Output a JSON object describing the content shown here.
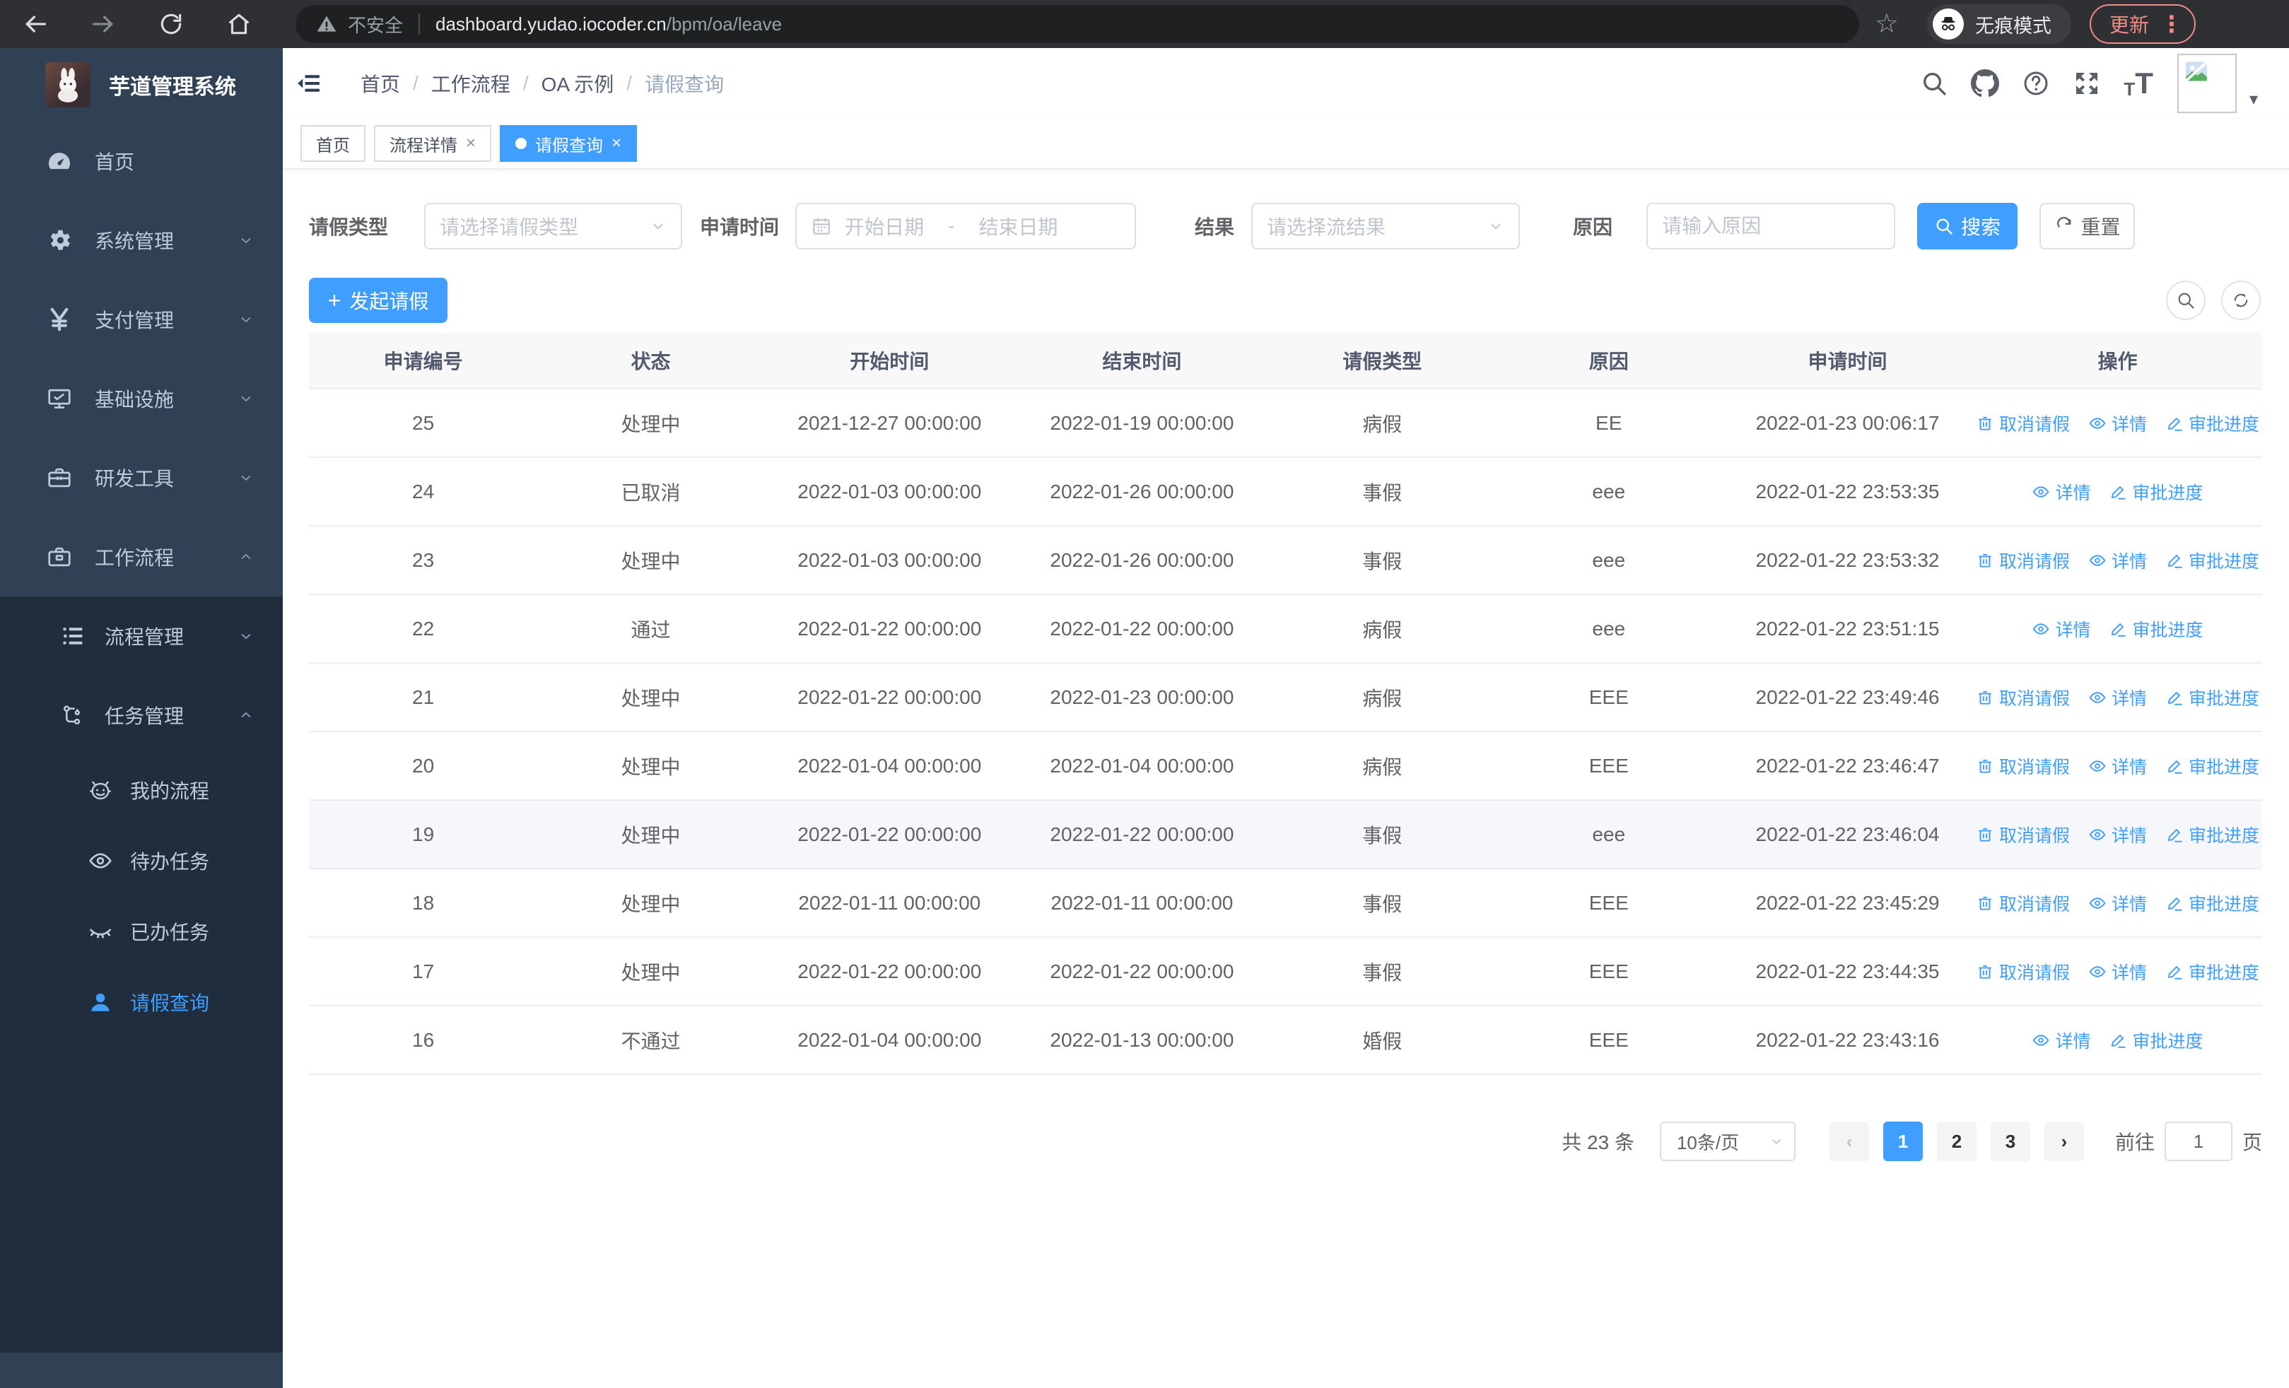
{
  "browser": {
    "security_label": "不安全",
    "url_host": "dashboard.yudao.iocoder.cn",
    "url_path": "/bpm/oa/leave",
    "incognito_label": "无痕模式",
    "update_label": "更新"
  },
  "sidebar": {
    "title": "芋道管理系统",
    "items": [
      {
        "label": "首页",
        "icon": "dashboard-icon",
        "arrow": ""
      },
      {
        "label": "系统管理",
        "icon": "gear-icon",
        "arrow": "down"
      },
      {
        "label": "支付管理",
        "icon": "yen-icon",
        "arrow": "down"
      },
      {
        "label": "基础设施",
        "icon": "monitor-icon",
        "arrow": "down"
      },
      {
        "label": "研发工具",
        "icon": "toolbox-icon",
        "arrow": "down"
      },
      {
        "label": "工作流程",
        "icon": "briefcase-icon",
        "arrow": "up"
      }
    ],
    "sub_items": [
      {
        "label": "流程管理",
        "icon": "tree-icon",
        "arrow": "down"
      },
      {
        "label": "任务管理",
        "icon": "flow-icon",
        "arrow": "up"
      }
    ],
    "leaf_items": [
      {
        "label": "我的流程",
        "icon": "robot-icon",
        "active": false
      },
      {
        "label": "待办任务",
        "icon": "eye-open-icon",
        "active": false
      },
      {
        "label": "已办任务",
        "icon": "eye-closed-icon",
        "active": false
      },
      {
        "label": "请假查询",
        "icon": "user-icon",
        "active": true
      }
    ]
  },
  "header": {
    "breadcrumb": [
      "首页",
      "工作流程",
      "OA 示例",
      "请假查询"
    ]
  },
  "tabs": [
    {
      "label": "首页",
      "active": false,
      "closable": false
    },
    {
      "label": "流程详情",
      "active": false,
      "closable": true
    },
    {
      "label": "请假查询",
      "active": true,
      "closable": true
    }
  ],
  "filters": {
    "type_label": "请假类型",
    "type_placeholder": "请选择请假类型",
    "time_label": "申请时间",
    "start_placeholder": "开始日期",
    "range_separator": "-",
    "end_placeholder": "结束日期",
    "result_label": "结果",
    "result_placeholder": "请选择流结果",
    "reason_label": "原因",
    "reason_placeholder": "请输入原因",
    "search_label": "搜索",
    "reset_label": "重置"
  },
  "toolbar": {
    "create_label": "发起请假"
  },
  "table": {
    "columns": [
      "申请编号",
      "状态",
      "开始时间",
      "结束时间",
      "请假类型",
      "原因",
      "申请时间",
      "操作"
    ],
    "action_labels": {
      "cancel": "取消请假",
      "detail": "详情",
      "progress": "审批进度"
    },
    "rows": [
      {
        "id": "25",
        "status": "处理中",
        "start": "2021-12-27 00:00:00",
        "end": "2022-01-19 00:00:00",
        "type": "病假",
        "reason": "EE",
        "apply_time": "2022-01-23 00:06:17",
        "actions": [
          "cancel",
          "detail",
          "progress"
        ],
        "highlight": false
      },
      {
        "id": "24",
        "status": "已取消",
        "start": "2022-01-03 00:00:00",
        "end": "2022-01-26 00:00:00",
        "type": "事假",
        "reason": "eee",
        "apply_time": "2022-01-22 23:53:35",
        "actions": [
          "detail",
          "progress"
        ],
        "highlight": false
      },
      {
        "id": "23",
        "status": "处理中",
        "start": "2022-01-03 00:00:00",
        "end": "2022-01-26 00:00:00",
        "type": "事假",
        "reason": "eee",
        "apply_time": "2022-01-22 23:53:32",
        "actions": [
          "cancel",
          "detail",
          "progress"
        ],
        "highlight": false
      },
      {
        "id": "22",
        "status": "通过",
        "start": "2022-01-22 00:00:00",
        "end": "2022-01-22 00:00:00",
        "type": "病假",
        "reason": "eee",
        "apply_time": "2022-01-22 23:51:15",
        "actions": [
          "detail",
          "progress"
        ],
        "highlight": false
      },
      {
        "id": "21",
        "status": "处理中",
        "start": "2022-01-22 00:00:00",
        "end": "2022-01-23 00:00:00",
        "type": "病假",
        "reason": "EEE",
        "apply_time": "2022-01-22 23:49:46",
        "actions": [
          "cancel",
          "detail",
          "progress"
        ],
        "highlight": false
      },
      {
        "id": "20",
        "status": "处理中",
        "start": "2022-01-04 00:00:00",
        "end": "2022-01-04 00:00:00",
        "type": "病假",
        "reason": "EEE",
        "apply_time": "2022-01-22 23:46:47",
        "actions": [
          "cancel",
          "detail",
          "progress"
        ],
        "highlight": false
      },
      {
        "id": "19",
        "status": "处理中",
        "start": "2022-01-22 00:00:00",
        "end": "2022-01-22 00:00:00",
        "type": "事假",
        "reason": "eee",
        "apply_time": "2022-01-22 23:46:04",
        "actions": [
          "cancel",
          "detail",
          "progress"
        ],
        "highlight": true
      },
      {
        "id": "18",
        "status": "处理中",
        "start": "2022-01-11 00:00:00",
        "end": "2022-01-11 00:00:00",
        "type": "事假",
        "reason": "EEE",
        "apply_time": "2022-01-22 23:45:29",
        "actions": [
          "cancel",
          "detail",
          "progress"
        ],
        "highlight": false
      },
      {
        "id": "17",
        "status": "处理中",
        "start": "2022-01-22 00:00:00",
        "end": "2022-01-22 00:00:00",
        "type": "事假",
        "reason": "EEE",
        "apply_time": "2022-01-22 23:44:35",
        "actions": [
          "cancel",
          "detail",
          "progress"
        ],
        "highlight": false
      },
      {
        "id": "16",
        "status": "不通过",
        "start": "2022-01-04 00:00:00",
        "end": "2022-01-13 00:00:00",
        "type": "婚假",
        "reason": "EEE",
        "apply_time": "2022-01-22 23:43:16",
        "actions": [
          "detail",
          "progress"
        ],
        "highlight": false
      }
    ]
  },
  "pagination": {
    "total_label": "共 23 条",
    "page_size": "10条/页",
    "pages": [
      "1",
      "2",
      "3"
    ],
    "active_page": "1",
    "goto_label": "前往",
    "goto_value": "1",
    "page_unit": "页"
  },
  "colors": {
    "accent": "#409eff",
    "sidebar_bg": "#304156",
    "submenu_bg": "#1f2d3d"
  }
}
